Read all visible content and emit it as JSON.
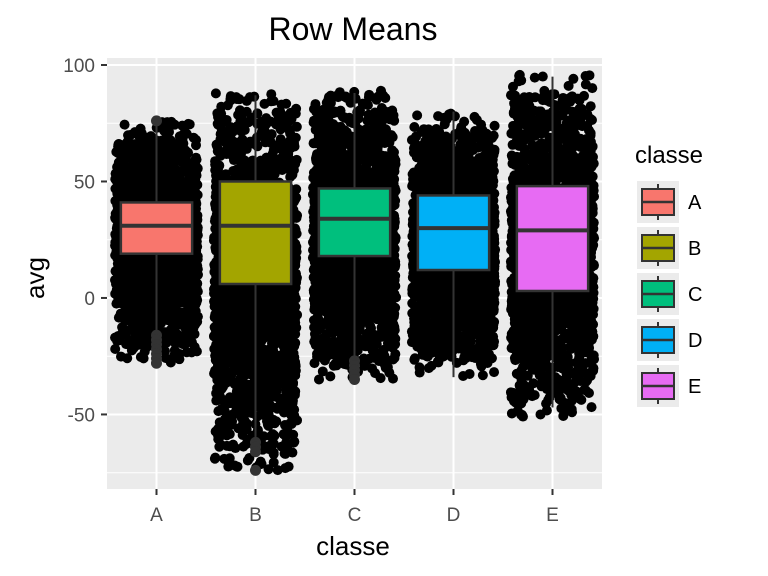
{
  "chart_data": {
    "type": "boxplot",
    "title": "Row Means",
    "xlabel": "classe",
    "ylabel": "avg",
    "categories": [
      "A",
      "B",
      "C",
      "D",
      "E"
    ],
    "ylim": [
      -82,
      103
    ],
    "yticks": [
      -50,
      0,
      50,
      100
    ],
    "y_tick_labels": [
      "-50",
      "0",
      "50",
      "100"
    ],
    "grid": true,
    "legend": {
      "title": "classe",
      "position": "right",
      "entries": [
        "A",
        "B",
        "C",
        "D",
        "E"
      ]
    },
    "colors": {
      "A": "#F8766D",
      "B": "#A3A500",
      "C": "#00BF7D",
      "D": "#00B0F6",
      "E": "#E76BF3",
      "panel": "#EBEBEB",
      "grid": "#FFFFFF",
      "points": "#000000"
    },
    "boxes": [
      {
        "category": "A",
        "q1": 19,
        "median": 31,
        "q3": 41,
        "whisker_low": -15,
        "whisker_high": 75,
        "jitter_min": -28,
        "jitter_max": 76,
        "outliers": [
          -16,
          -18,
          -20,
          -22,
          -24,
          -26,
          -28,
          76
        ]
      },
      {
        "category": "B",
        "q1": 6,
        "median": 31,
        "q3": 50,
        "whisker_low": -60,
        "whisker_high": 87,
        "jitter_min": -74,
        "jitter_max": 88,
        "outliers": [
          -62,
          -64,
          -66,
          -74
        ]
      },
      {
        "category": "C",
        "q1": 18,
        "median": 34,
        "q3": 47,
        "whisker_low": -26,
        "whisker_high": 88,
        "jitter_min": -35,
        "jitter_max": 89,
        "outliers": [
          -27,
          -29,
          -31,
          -33,
          -35
        ]
      },
      {
        "category": "D",
        "q1": 12,
        "median": 30,
        "q3": 44,
        "whisker_low": -34,
        "whisker_high": 80,
        "jitter_min": -34,
        "jitter_max": 80,
        "outliers": []
      },
      {
        "category": "E",
        "q1": 3,
        "median": 29,
        "q3": 48,
        "whisker_low": -47,
        "whisker_high": 95,
        "jitter_min": -51,
        "jitter_max": 96,
        "outliers": []
      }
    ]
  }
}
